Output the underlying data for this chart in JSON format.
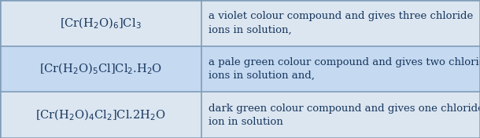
{
  "rows": [
    {
      "formula": "[Cr(H$_{2}$O)$_{6}$]Cl$_{3}$",
      "description": "a violet colour compound and gives three chloride\nions in solution,"
    },
    {
      "formula": "[Cr(H$_{2}$O)$_{5}$Cl]Cl$_{2}$.H$_{2}$O",
      "description": "a pale green colour compound and gives two chloride\nions in solution and,"
    },
    {
      "formula": "[Cr(H$_{2}$O)$_{4}$Cl$_{2}$]Cl.2H$_{2}$O",
      "description": "dark green colour compound and gives one chloride\nion in solution"
    }
  ],
  "bg_color_light": "#dce6f1",
  "bg_color_dark": "#c5d9f1",
  "border_color": "#7f9db9",
  "text_color": "#17375e",
  "formula_color": "#17375e",
  "col_split": 0.42,
  "fig_width": 6.1,
  "fig_height": 1.76,
  "font_size": 9.5,
  "formula_font_size": 10.5
}
